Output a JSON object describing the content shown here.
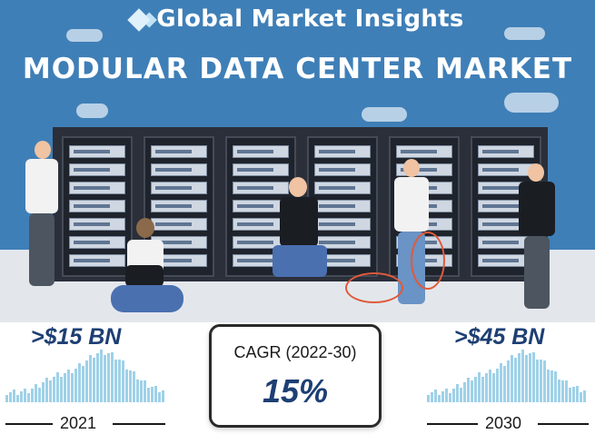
{
  "brand": "Global Market Insights",
  "title": "MODULAR DATA CENTER MARKET",
  "left_stat": {
    "value": ">$15 BN",
    "year": "2021"
  },
  "right_stat": {
    "value": ">$45 BN",
    "year": "2030"
  },
  "cagr": {
    "label": "CAGR (2022-30)",
    "value": "15%"
  },
  "colors": {
    "sky": "#3f7fb7",
    "navy": "#1d3f73",
    "bars": "#9fd1e8"
  }
}
